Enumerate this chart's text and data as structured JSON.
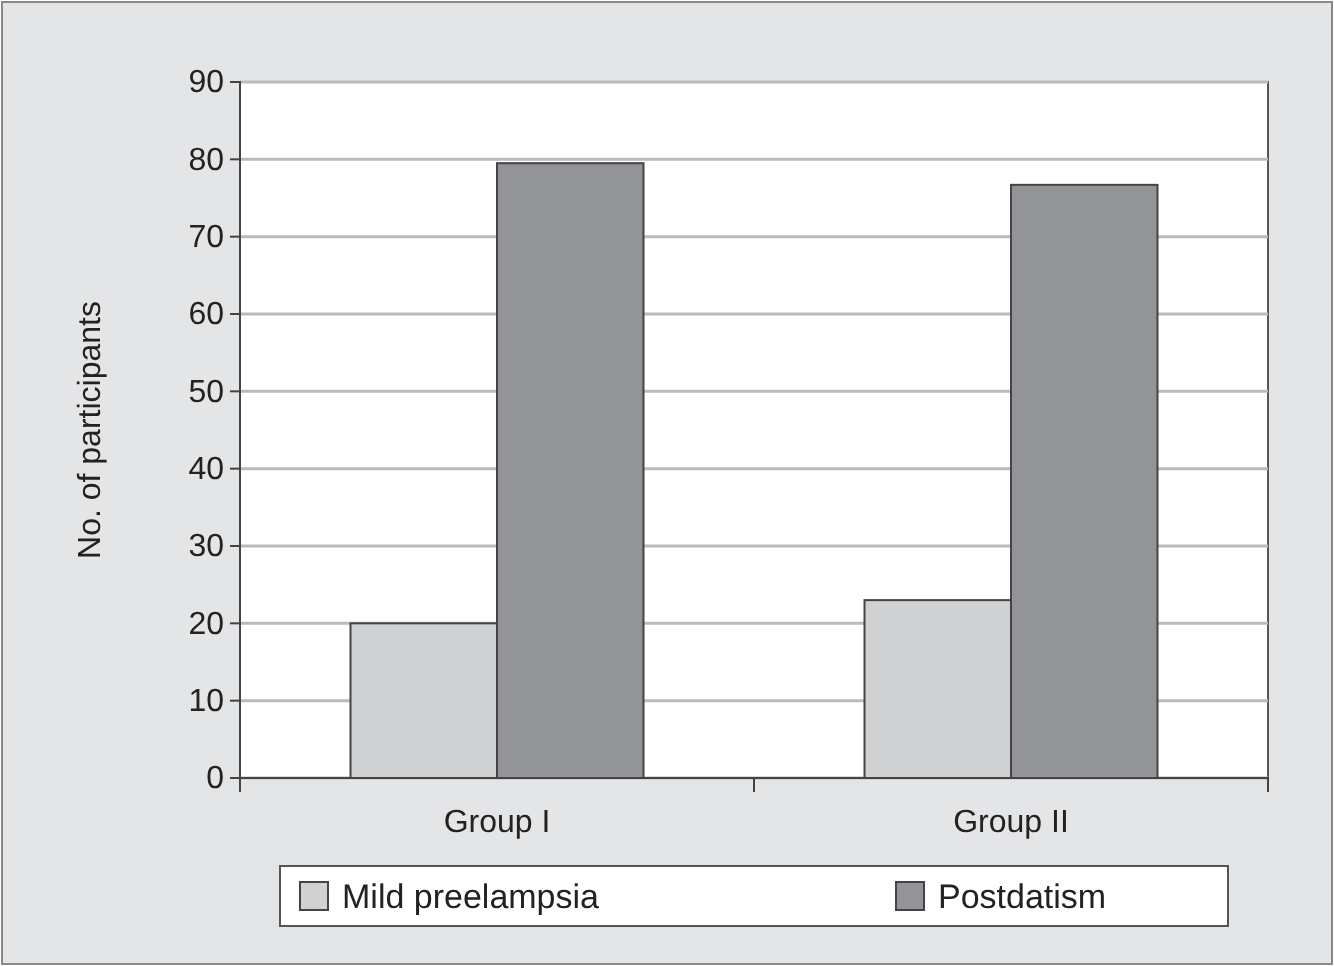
{
  "chart_data": {
    "type": "bar",
    "ylabel": "No. of participants",
    "categories": [
      "Group I",
      "Group II"
    ],
    "series": [
      {
        "name": "Mild preelampsia",
        "color": "#d0d1d3",
        "values": [
          20,
          23
        ]
      },
      {
        "name": "Postdatism",
        "color": "#939497",
        "values": [
          79.5,
          76.7
        ]
      }
    ],
    "ylim": [
      0,
      90
    ],
    "yticks": [
      0,
      10,
      20,
      30,
      40,
      50,
      60,
      70,
      80,
      90
    ],
    "grid": "y",
    "legend": "bottom"
  }
}
